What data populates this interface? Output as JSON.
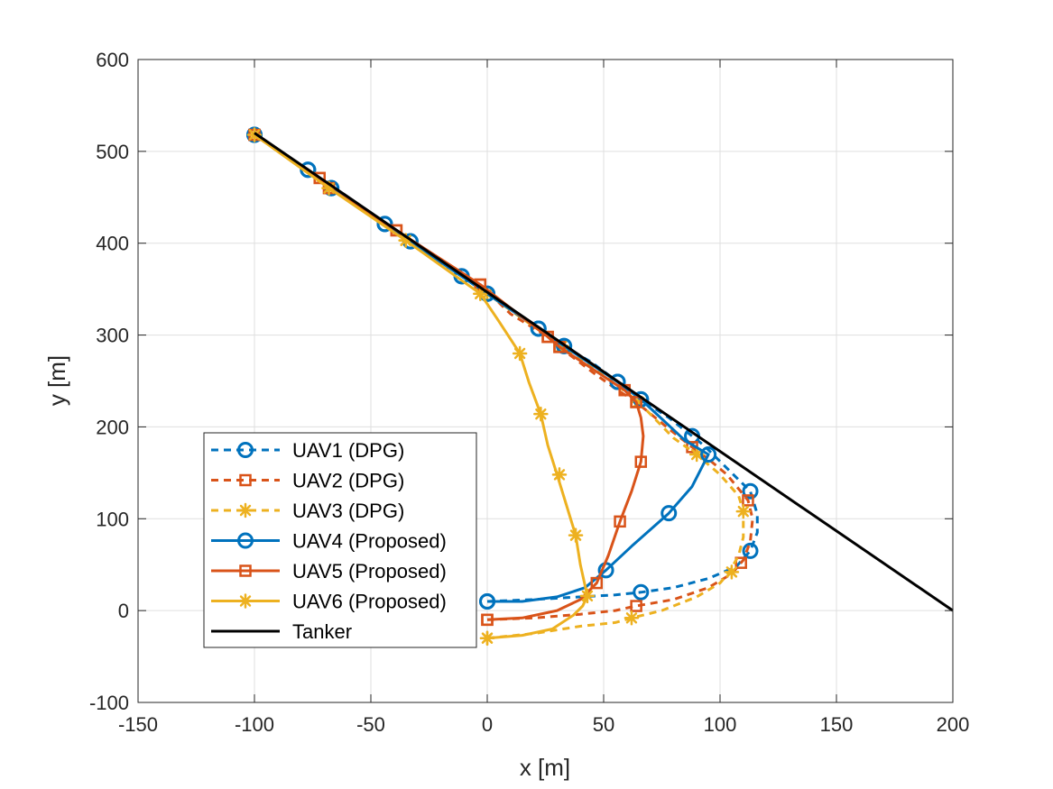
{
  "chart_data": {
    "type": "line",
    "xlabel": "x [m]",
    "ylabel": "y [m]",
    "xlim": [
      -150,
      200
    ],
    "ylim": [
      -100,
      600
    ],
    "xticks": [
      -150,
      -100,
      -50,
      0,
      50,
      100,
      150,
      200
    ],
    "yticks": [
      -100,
      0,
      100,
      200,
      300,
      400,
      500,
      600
    ],
    "xtick_labels": [
      "-150",
      "-100",
      "-50",
      "0",
      "50",
      "100",
      "150",
      "200"
    ],
    "ytick_labels": [
      "-100",
      "0",
      "100",
      "200",
      "300",
      "400",
      "500",
      "600"
    ],
    "grid": true,
    "legend_position": "lower-left",
    "series": [
      {
        "name": "UAV1 (DPG)",
        "color": "#0072BD",
        "line": "dashed",
        "marker": "circle",
        "points": [
          [
            0,
            10
          ],
          [
            20,
            12
          ],
          [
            40,
            15
          ],
          [
            55,
            17
          ],
          [
            66,
            20
          ],
          [
            80,
            25
          ],
          [
            95,
            35
          ],
          [
            107,
            48
          ],
          [
            113,
            65
          ],
          [
            116,
            85
          ],
          [
            116,
            105
          ],
          [
            113,
            130
          ],
          [
            103,
            155
          ],
          [
            93,
            180
          ],
          [
            88,
            190
          ],
          [
            78,
            210
          ],
          [
            66,
            230
          ],
          [
            56,
            249
          ],
          [
            45,
            270
          ],
          [
            33,
            288
          ],
          [
            22,
            307
          ],
          [
            12,
            325
          ],
          [
            0,
            345
          ],
          [
            -11,
            364
          ],
          [
            -22,
            383
          ],
          [
            -33,
            402
          ],
          [
            -44,
            421
          ],
          [
            -55,
            440
          ],
          [
            -67,
            460
          ],
          [
            -77,
            480
          ],
          [
            -89,
            500
          ],
          [
            -100,
            518
          ]
        ],
        "markers": [
          [
            0,
            10
          ],
          [
            66,
            20
          ],
          [
            113,
            65
          ],
          [
            113,
            130
          ],
          [
            88,
            190
          ],
          [
            66,
            230
          ],
          [
            56,
            249
          ],
          [
            33,
            288
          ],
          [
            22,
            307
          ],
          [
            0,
            345
          ],
          [
            -11,
            364
          ],
          [
            -33,
            402
          ],
          [
            -44,
            421
          ],
          [
            -67,
            460
          ],
          [
            -77,
            480
          ],
          [
            -100,
            518
          ]
        ]
      },
      {
        "name": "UAV2 (DPG)",
        "color": "#D95319",
        "line": "dashed",
        "marker": "square",
        "points": [
          [
            0,
            -10
          ],
          [
            20,
            -8
          ],
          [
            40,
            -4
          ],
          [
            55,
            0
          ],
          [
            64,
            5
          ],
          [
            80,
            12
          ],
          [
            95,
            25
          ],
          [
            105,
            40
          ],
          [
            110,
            55
          ],
          [
            113,
            75
          ],
          [
            114,
            100
          ],
          [
            112,
            120
          ],
          [
            103,
            148
          ],
          [
            95,
            165
          ],
          [
            88,
            178
          ],
          [
            78,
            198
          ],
          [
            64,
            227
          ],
          [
            56,
            240
          ],
          [
            45,
            260
          ],
          [
            31,
            287
          ],
          [
            26,
            298
          ],
          [
            10,
            323
          ],
          [
            -3,
            355
          ],
          [
            -20,
            378
          ],
          [
            -39,
            414
          ],
          [
            -55,
            440
          ],
          [
            -68,
            460
          ],
          [
            -72,
            471
          ],
          [
            -87,
            495
          ],
          [
            -100,
            518
          ]
        ],
        "markers": [
          [
            0,
            -10
          ],
          [
            64,
            5
          ],
          [
            109,
            52
          ],
          [
            112,
            120
          ],
          [
            88,
            178
          ],
          [
            64,
            227
          ],
          [
            59,
            240
          ],
          [
            31,
            287
          ],
          [
            26,
            298
          ],
          [
            -3,
            355
          ],
          [
            -39,
            414
          ],
          [
            -68,
            460
          ],
          [
            -72,
            471
          ],
          [
            -100,
            518
          ]
        ]
      },
      {
        "name": "UAV3 (DPG)",
        "color": "#EDB120",
        "line": "dashed",
        "marker": "asterisk",
        "points": [
          [
            0,
            -30
          ],
          [
            20,
            -25
          ],
          [
            40,
            -17
          ],
          [
            55,
            -13
          ],
          [
            62,
            -8
          ],
          [
            75,
            0
          ],
          [
            90,
            15
          ],
          [
            100,
            30
          ],
          [
            104,
            42
          ],
          [
            108,
            60
          ],
          [
            110,
            80
          ],
          [
            110,
            108
          ],
          [
            108,
            125
          ],
          [
            100,
            148
          ],
          [
            90,
            170
          ],
          [
            80,
            188
          ],
          [
            65,
            227
          ],
          [
            56,
            245
          ],
          [
            45,
            265
          ],
          [
            32,
            288
          ],
          [
            15,
            318
          ],
          [
            0,
            345
          ],
          [
            -16,
            374
          ],
          [
            -35,
            403
          ],
          [
            -50,
            432
          ],
          [
            -68,
            460
          ],
          [
            -84,
            490
          ],
          [
            -100,
            518
          ]
        ],
        "markers": [
          [
            0,
            -30
          ],
          [
            62,
            -8
          ],
          [
            105,
            42
          ],
          [
            110,
            108
          ],
          [
            90,
            170
          ],
          [
            65,
            227
          ],
          [
            32,
            288
          ],
          [
            0,
            345
          ],
          [
            -35,
            403
          ],
          [
            -68,
            460
          ],
          [
            -100,
            518
          ]
        ]
      },
      {
        "name": "UAV4 (Proposed)",
        "color": "#0072BD",
        "line": "solid",
        "marker": "circle",
        "points": [
          [
            0,
            10
          ],
          [
            15,
            10
          ],
          [
            30,
            15
          ],
          [
            42,
            25
          ],
          [
            51,
            44
          ],
          [
            62,
            70
          ],
          [
            78,
            106
          ],
          [
            88,
            135
          ],
          [
            95,
            170
          ],
          [
            85,
            185
          ],
          [
            66,
            230
          ],
          [
            56,
            249
          ],
          [
            33,
            288
          ],
          [
            22,
            307
          ],
          [
            0,
            345
          ],
          [
            -11,
            364
          ],
          [
            -33,
            402
          ],
          [
            -44,
            421
          ],
          [
            -67,
            460
          ],
          [
            -77,
            480
          ],
          [
            -100,
            518
          ]
        ],
        "markers": [
          [
            0,
            10
          ],
          [
            51,
            44
          ],
          [
            78,
            106
          ],
          [
            95,
            170
          ],
          [
            66,
            230
          ],
          [
            56,
            249
          ],
          [
            33,
            288
          ],
          [
            22,
            307
          ],
          [
            0,
            345
          ],
          [
            -11,
            364
          ],
          [
            -33,
            402
          ],
          [
            -44,
            421
          ],
          [
            -67,
            460
          ],
          [
            -77,
            480
          ],
          [
            -100,
            518
          ]
        ]
      },
      {
        "name": "UAV5 (Proposed)",
        "color": "#D95319",
        "line": "solid",
        "marker": "square",
        "points": [
          [
            0,
            -10
          ],
          [
            15,
            -8
          ],
          [
            30,
            0
          ],
          [
            40,
            12
          ],
          [
            47,
            30
          ],
          [
            52,
            60
          ],
          [
            57,
            97
          ],
          [
            62,
            130
          ],
          [
            66,
            162
          ],
          [
            67,
            190
          ],
          [
            66,
            210
          ],
          [
            64,
            227
          ],
          [
            59,
            240
          ],
          [
            31,
            287
          ],
          [
            26,
            298
          ],
          [
            -3,
            355
          ],
          [
            -39,
            414
          ],
          [
            -68,
            460
          ],
          [
            -72,
            471
          ],
          [
            -100,
            518
          ]
        ],
        "markers": [
          [
            0,
            -10
          ],
          [
            47,
            30
          ],
          [
            57,
            97
          ],
          [
            66,
            162
          ],
          [
            64,
            227
          ],
          [
            59,
            240
          ],
          [
            31,
            287
          ],
          [
            26,
            298
          ],
          [
            -3,
            355
          ],
          [
            -39,
            414
          ],
          [
            -68,
            460
          ],
          [
            -72,
            471
          ],
          [
            -100,
            518
          ]
        ]
      },
      {
        "name": "UAV6 (Proposed)",
        "color": "#EDB120",
        "line": "solid",
        "marker": "asterisk",
        "points": [
          [
            0,
            -30
          ],
          [
            15,
            -27
          ],
          [
            28,
            -20
          ],
          [
            37,
            -5
          ],
          [
            41,
            5
          ],
          [
            43,
            16
          ],
          [
            40,
            50
          ],
          [
            38,
            82
          ],
          [
            34,
            115
          ],
          [
            30,
            148
          ],
          [
            26,
            180
          ],
          [
            23,
            214
          ],
          [
            18,
            248
          ],
          [
            14,
            280
          ],
          [
            5,
            315
          ],
          [
            -3,
            345
          ],
          [
            -35,
            403
          ],
          [
            -68,
            460
          ],
          [
            -100,
            518
          ]
        ],
        "markers": [
          [
            0,
            -30
          ],
          [
            43,
            16
          ],
          [
            38,
            82
          ],
          [
            31,
            148
          ],
          [
            23,
            214
          ],
          [
            14,
            280
          ],
          [
            -3,
            345
          ],
          [
            -35,
            403
          ],
          [
            -68,
            460
          ],
          [
            -100,
            518
          ]
        ]
      },
      {
        "name": "Tanker",
        "color": "#000000",
        "line": "solid",
        "marker": "none",
        "points": [
          [
            -100,
            520
          ],
          [
            200,
            0
          ]
        ],
        "markers": []
      }
    ]
  }
}
